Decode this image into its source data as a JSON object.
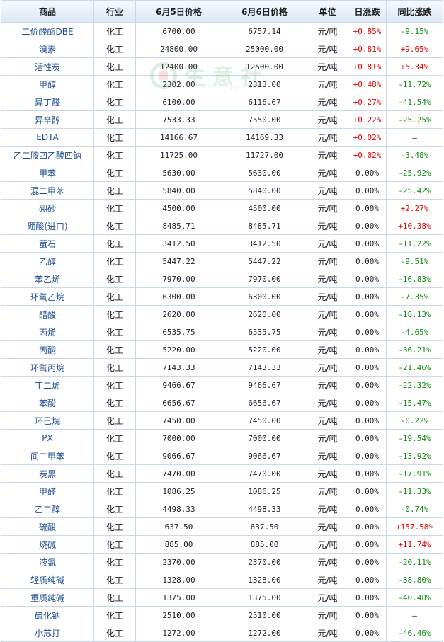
{
  "table": {
    "headers": [
      "商品",
      "行业",
      "6月5日价格",
      "6月6日价格",
      "单位",
      "日涨跌",
      "同比涨跌"
    ],
    "rows": [
      [
        "二价酸酯DBE",
        "化工",
        "6700.00",
        "6757.14",
        "元/吨",
        "+0.85%",
        "-9.15%"
      ],
      [
        "溴素",
        "化工",
        "24800.00",
        "25000.00",
        "元/吨",
        "+0.81%",
        "+9.65%"
      ],
      [
        "活性炭",
        "化工",
        "12400.00",
        "12500.00",
        "元/吨",
        "+0.81%",
        "+5.34%"
      ],
      [
        "甲醇",
        "化工",
        "2302.00",
        "2313.00",
        "元/吨",
        "+0.48%",
        "-11.72%"
      ],
      [
        "异丁醛",
        "化工",
        "6100.00",
        "6116.67",
        "元/吨",
        "+0.27%",
        "-41.54%"
      ],
      [
        "异辛醇",
        "化工",
        "7533.33",
        "7550.00",
        "元/吨",
        "+0.22%",
        "-25.25%"
      ],
      [
        "EDTA",
        "化工",
        "14166.67",
        "14169.33",
        "元/吨",
        "+0.02%",
        "—"
      ],
      [
        "乙二胺四乙酸四钠",
        "化工",
        "11725.00",
        "11727.00",
        "元/吨",
        "+0.02%",
        "-3.48%"
      ],
      [
        "甲苯",
        "化工",
        "5630.00",
        "5630.00",
        "元/吨",
        "0.00%",
        "-25.92%"
      ],
      [
        "混二甲苯",
        "化工",
        "5840.00",
        "5840.00",
        "元/吨",
        "0.00%",
        "-25.42%"
      ],
      [
        "硼砂",
        "化工",
        "4500.00",
        "4500.00",
        "元/吨",
        "0.00%",
        "+2.27%"
      ],
      [
        "硼酸(进口)",
        "化工",
        "8485.71",
        "8485.71",
        "元/吨",
        "0.00%",
        "+10.38%"
      ],
      [
        "萤石",
        "化工",
        "3412.50",
        "3412.50",
        "元/吨",
        "0.00%",
        "-11.22%"
      ],
      [
        "乙醇",
        "化工",
        "5447.22",
        "5447.22",
        "元/吨",
        "0.00%",
        "-9.51%"
      ],
      [
        "苯乙烯",
        "化工",
        "7970.00",
        "7970.00",
        "元/吨",
        "0.00%",
        "-16.83%"
      ],
      [
        "环氧乙烷",
        "化工",
        "6300.00",
        "6300.00",
        "元/吨",
        "0.00%",
        "-7.35%"
      ],
      [
        "醋酸",
        "化工",
        "2620.00",
        "2620.00",
        "元/吨",
        "0.00%",
        "-18.13%"
      ],
      [
        "丙烯",
        "化工",
        "6535.75",
        "6535.75",
        "元/吨",
        "0.00%",
        "-4.65%"
      ],
      [
        "丙酮",
        "化工",
        "5220.00",
        "5220.00",
        "元/吨",
        "0.00%",
        "-36.21%"
      ],
      [
        "环氧丙烷",
        "化工",
        "7143.33",
        "7143.33",
        "元/吨",
        "0.00%",
        "-21.46%"
      ],
      [
        "丁二烯",
        "化工",
        "9466.67",
        "9466.67",
        "元/吨",
        "0.00%",
        "-22.32%"
      ],
      [
        "苯酚",
        "化工",
        "6656.67",
        "6656.67",
        "元/吨",
        "0.00%",
        "-15.47%"
      ],
      [
        "环己烷",
        "化工",
        "7450.00",
        "7450.00",
        "元/吨",
        "0.00%",
        "-0.22%"
      ],
      [
        "PX",
        "化工",
        "7000.00",
        "7000.00",
        "元/吨",
        "0.00%",
        "-19.54%"
      ],
      [
        "间二甲苯",
        "化工",
        "9066.67",
        "9066.67",
        "元/吨",
        "0.00%",
        "-13.92%"
      ],
      [
        "炭黑",
        "化工",
        "7470.00",
        "7470.00",
        "元/吨",
        "0.00%",
        "-17.91%"
      ],
      [
        "甲醛",
        "化工",
        "1086.25",
        "1086.25",
        "元/吨",
        "0.00%",
        "-11.33%"
      ],
      [
        "乙二醇",
        "化工",
        "4498.33",
        "4498.33",
        "元/吨",
        "0.00%",
        "-0.74%"
      ],
      [
        "硫酸",
        "化工",
        "637.50",
        "637.50",
        "元/吨",
        "0.00%",
        "+157.58%"
      ],
      [
        "烧碱",
        "化工",
        "885.00",
        "885.00",
        "元/吨",
        "0.00%",
        "+11.74%"
      ],
      [
        "液氯",
        "化工",
        "2370.00",
        "2370.00",
        "元/吨",
        "0.00%",
        "-20.11%"
      ],
      [
        "轻质纯碱",
        "化工",
        "1328.00",
        "1328.00",
        "元/吨",
        "0.00%",
        "-38.80%"
      ],
      [
        "重质纯碱",
        "化工",
        "1375.00",
        "1375.00",
        "元/吨",
        "0.00%",
        "-40.48%"
      ],
      [
        "硫化钠",
        "化工",
        "2510.00",
        "2510.00",
        "元/吨",
        "0.00%",
        "—"
      ],
      [
        "小苏打",
        "化工",
        "1272.00",
        "1272.00",
        "元/吨",
        "0.00%",
        "-46.46%"
      ]
    ]
  },
  "watermark": {
    "text": "生意社",
    "url": "www.100ppi.com"
  },
  "colors": {
    "up": "#e60000",
    "down": "#148a14",
    "name_link": "#1f4e8e",
    "border": "#c9d8ea"
  }
}
